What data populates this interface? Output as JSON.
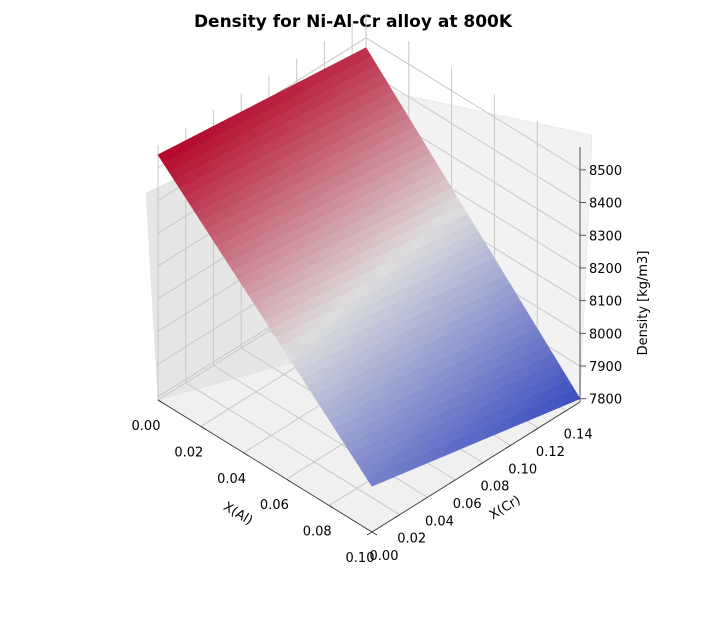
{
  "chart_data": {
    "type": "surface3d",
    "title": "Density for Ni-Al-Cr alloy at 800K",
    "xlabel": "X(Al)",
    "ylabel": "X(Cr)",
    "zlabel": "Density [kg/m3]",
    "x_ticks": [
      "0.00",
      "0.02",
      "0.04",
      "0.06",
      "0.08",
      "0.10"
    ],
    "y_ticks": [
      "0.00",
      "0.02",
      "0.04",
      "0.06",
      "0.08",
      "0.10",
      "0.12",
      "0.14"
    ],
    "z_ticks": [
      "7800",
      "7900",
      "8000",
      "8100",
      "8200",
      "8300",
      "8400",
      "8500"
    ],
    "xlim": [
      0,
      0.1
    ],
    "ylim": [
      0,
      0.15
    ],
    "zlim": [
      7790,
      8570
    ],
    "colormap": [
      "#3b4cc0",
      "#dddddd",
      "#b40426"
    ],
    "grid": true,
    "surface_corners": [
      {
        "x": 0.0,
        "y": 0.0,
        "z": 8540
      },
      {
        "x": 0.1,
        "y": 0.0,
        "z": 7930
      },
      {
        "x": 0.1,
        "y": 0.15,
        "z": 7800
      },
      {
        "x": 0.0,
        "y": 0.15,
        "z": 8470
      }
    ]
  }
}
